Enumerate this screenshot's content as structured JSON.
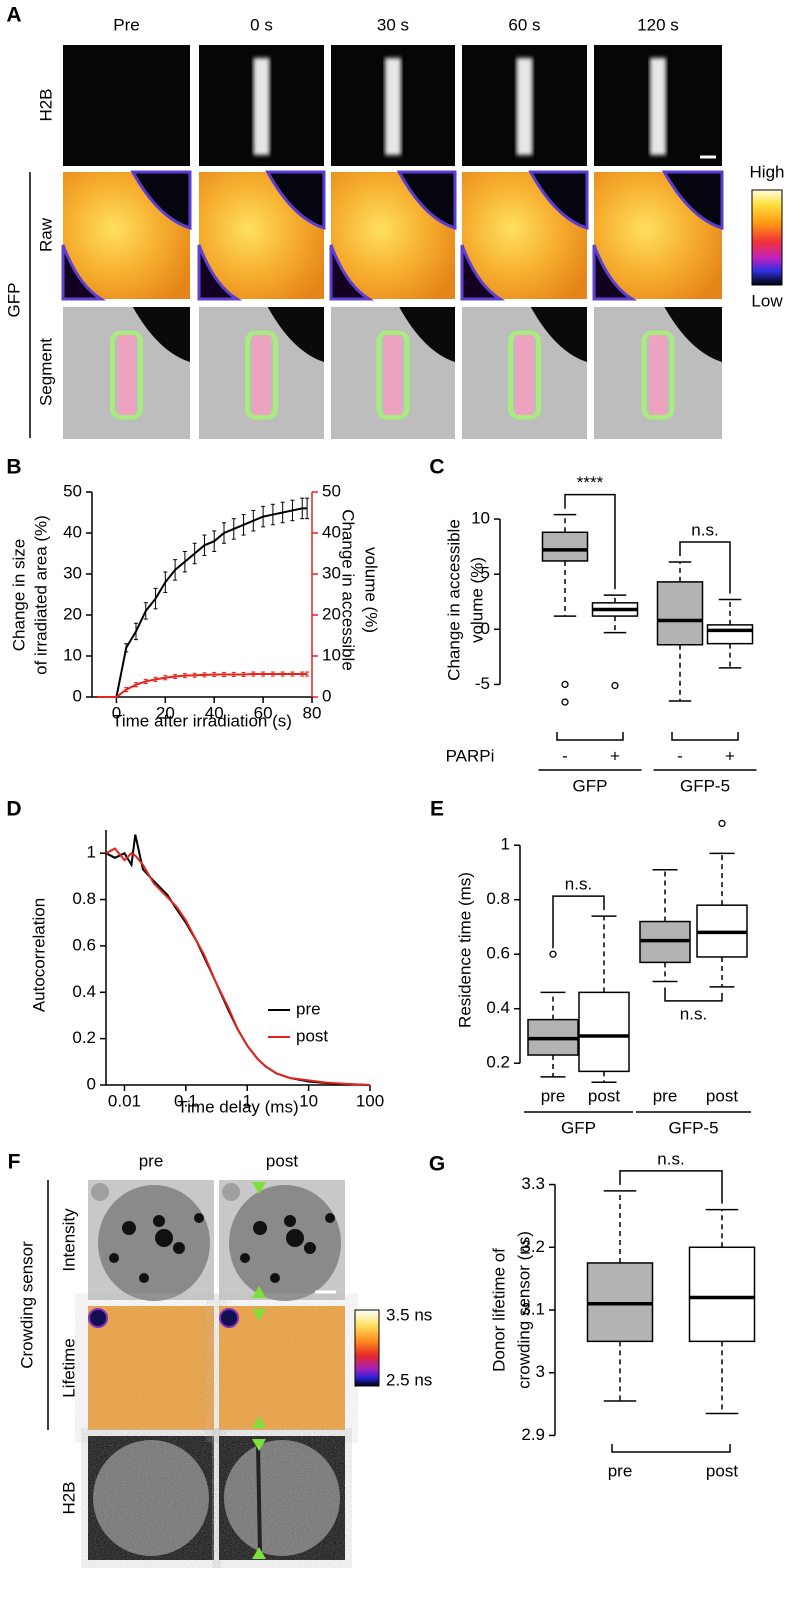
{
  "panel_a": {
    "label": "A",
    "columns": [
      "Pre",
      "0 s",
      "30 s",
      "60 s",
      "120 s"
    ],
    "rows": [
      "H2B",
      "Raw",
      "Segment"
    ],
    "group": "GFP",
    "colorbar": [
      "High",
      "Low"
    ]
  },
  "panel_f": {
    "label": "F",
    "columns": [
      "pre",
      "post"
    ],
    "rows": [
      "Intensity",
      "Lifetime",
      "H2B"
    ],
    "group": "Crowding sensor",
    "colorbar": [
      "3.5 ns",
      "2.5 ns"
    ]
  },
  "chart_data": [
    {
      "type": "line",
      "panel": "B",
      "ylabel": [
        "Change in size",
        "of irradiated area (%)"
      ],
      "y2label": [
        "Change in accessible",
        "volume (%)"
      ],
      "xlabel": "Time after irradiation (s)",
      "x": [
        -8,
        0,
        4,
        8,
        12,
        16,
        20,
        24,
        28,
        32,
        36,
        40,
        44,
        48,
        52,
        56,
        60,
        64,
        68,
        72,
        76,
        78
      ],
      "xlim": [
        -10,
        80
      ],
      "xticks": [
        0,
        20,
        40,
        60,
        80
      ],
      "ylim": [
        0,
        50
      ],
      "yticks": [
        0,
        10,
        20,
        30,
        40,
        50
      ],
      "y2lim": [
        0,
        50
      ],
      "y2ticks": [
        0,
        10,
        20,
        30,
        40,
        50
      ],
      "y2color": "#e8231c",
      "series": [
        {
          "color": "#000000",
          "values": [
            0,
            0,
            12,
            16,
            21,
            24,
            28,
            31,
            33,
            35,
            37,
            38,
            40,
            41,
            42,
            43,
            44,
            44.5,
            45,
            45.5,
            46,
            46
          ],
          "errors": [
            null,
            null,
            1,
            2,
            2,
            2.5,
            2.5,
            2.5,
            2.5,
            2.5,
            2.5,
            2.5,
            2.5,
            2.5,
            2.5,
            2.5,
            2.5,
            2.5,
            2.5,
            2.5,
            2.5,
            2.5
          ]
        },
        {
          "color": "#e8231c",
          "axis": "y2",
          "values": [
            0,
            0,
            1.8,
            3,
            3.8,
            4.3,
            4.7,
            5,
            5.2,
            5.3,
            5.4,
            5.5,
            5.5,
            5.5,
            5.5,
            5.6,
            5.6,
            5.6,
            5.6,
            5.6,
            5.6,
            5.6
          ],
          "errors": [
            null,
            null,
            0.5,
            0.5,
            0.5,
            0.5,
            0.5,
            0.5,
            0.5,
            0.5,
            0.5,
            0.5,
            0.5,
            0.5,
            0.5,
            0.5,
            0.5,
            0.5,
            0.5,
            0.5,
            0.5,
            0.5
          ]
        }
      ]
    },
    {
      "type": "box",
      "panel": "C",
      "ylabel": [
        "Change in accessible",
        "volume (%)"
      ],
      "ylim": [
        -7.5,
        12
      ],
      "yticks": [
        -5,
        0,
        5,
        10
      ],
      "categories": [
        "-",
        "+",
        "-",
        "+"
      ],
      "group_variable": "PARPi",
      "groups": [
        "GFP",
        "GFP-5"
      ],
      "significance": [
        "****",
        "n.s."
      ],
      "boxes": [
        {
          "low": 1.2,
          "q1": 6.2,
          "median": 7.2,
          "q3": 8.8,
          "high": 10.4,
          "outliers": [
            -5,
            -6.6
          ],
          "color": "#b3b3b3"
        },
        {
          "low": -0.3,
          "q1": 1.2,
          "median": 1.8,
          "q3": 2.4,
          "high": 3.1,
          "outliers": [
            -5.1
          ],
          "color": "#ffffff"
        },
        {
          "low": -6.5,
          "q1": -1.4,
          "median": 0.8,
          "q3": 4.3,
          "high": 6.1,
          "outliers": [],
          "color": "#b3b3b3"
        },
        {
          "low": -3.5,
          "q1": -1.3,
          "median": -0.1,
          "q3": 0.4,
          "high": 2.7,
          "outliers": [],
          "color": "#ffffff"
        }
      ]
    },
    {
      "type": "line",
      "panel": "D",
      "ylabel": "Autocorrelation",
      "xlabel": "Time delay (ms)",
      "xscale": "log",
      "legend": "right",
      "x": [
        0.005,
        0.007,
        0.01,
        0.013,
        0.015,
        0.02,
        0.03,
        0.05,
        0.07,
        0.1,
        0.15,
        0.2,
        0.3,
        0.5,
        0.7,
        1,
        1.5,
        2,
        3,
        5,
        10,
        20,
        50,
        100
      ],
      "xlim": [
        0.005,
        100
      ],
      "xticks": [
        0.01,
        0.1,
        1,
        10,
        100
      ],
      "ylim": [
        0,
        1.1
      ],
      "yticks": [
        0,
        0.2,
        0.4,
        0.6,
        0.8,
        1
      ],
      "series": [
        {
          "name": "pre",
          "color": "#000000",
          "values": [
            1,
            0.98,
            1,
            0.95,
            1.08,
            0.93,
            0.88,
            0.82,
            0.76,
            0.7,
            0.62,
            0.55,
            0.45,
            0.32,
            0.24,
            0.17,
            0.11,
            0.08,
            0.05,
            0.03,
            0.015,
            0.008,
            0.003,
            0
          ]
        },
        {
          "name": "post",
          "color": "#e8231c",
          "values": [
            1,
            1.02,
            0.97,
            1,
            0.99,
            0.95,
            0.87,
            0.81,
            0.77,
            0.71,
            0.62,
            0.56,
            0.45,
            0.33,
            0.24,
            0.17,
            0.11,
            0.08,
            0.05,
            0.03,
            0.02,
            0.01,
            0.003,
            0
          ]
        }
      ]
    },
    {
      "type": "box",
      "panel": "E",
      "ylabel": "Residence time (ms)",
      "ylim": [
        0.12,
        1.1
      ],
      "yticks": [
        0.2,
        0.4,
        0.6,
        0.8,
        1
      ],
      "categories": [
        "pre",
        "post",
        "pre",
        "post"
      ],
      "groups": [
        "GFP",
        "GFP-5"
      ],
      "significance": [
        "n.s.",
        "n.s."
      ],
      "boxes": [
        {
          "low": 0.15,
          "q1": 0.23,
          "median": 0.29,
          "q3": 0.36,
          "high": 0.46,
          "outliers": [
            0.6
          ],
          "color": "#b3b3b3"
        },
        {
          "low": 0.13,
          "q1": 0.17,
          "median": 0.3,
          "q3": 0.46,
          "high": 0.74,
          "outliers": [],
          "color": "#ffffff"
        },
        {
          "low": 0.5,
          "q1": 0.57,
          "median": 0.65,
          "q3": 0.72,
          "high": 0.91,
          "outliers": [],
          "color": "#b3b3b3"
        },
        {
          "low": 0.48,
          "q1": 0.59,
          "median": 0.68,
          "q3": 0.78,
          "high": 0.97,
          "outliers": [
            1.08
          ],
          "color": "#ffffff"
        }
      ]
    },
    {
      "type": "box",
      "panel": "G",
      "ylabel": [
        "Donor lifetime of",
        "crowding sensor (ns)"
      ],
      "ylim": [
        2.88,
        3.32
      ],
      "yticks": [
        2.9,
        3,
        3.1,
        3.2,
        3.3
      ],
      "categories": [
        "pre",
        "post"
      ],
      "significance": [
        "n.s."
      ],
      "boxes": [
        {
          "low": 2.955,
          "q1": 3.05,
          "median": 3.11,
          "q3": 3.175,
          "high": 3.29,
          "outliers": [],
          "color": "#b3b3b3"
        },
        {
          "low": 2.935,
          "q1": 3.05,
          "median": 3.12,
          "q3": 3.2,
          "high": 3.26,
          "outliers": [],
          "color": "#ffffff"
        }
      ]
    }
  ]
}
